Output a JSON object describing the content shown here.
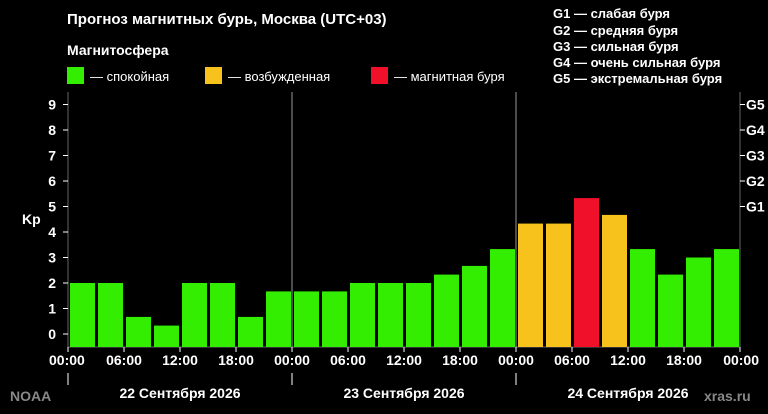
{
  "header": {
    "title": "Прогноз магнитных бурь, Москва (UTC+03)",
    "subtitle": "Магнитосфера"
  },
  "legend": [
    {
      "label": "— спокойная",
      "color": "#33ee00"
    },
    {
      "label": "— возбужденная",
      "color": "#f7c21b"
    },
    {
      "label": "— магнитная буря",
      "color": "#f0102a"
    }
  ],
  "g_legend": [
    "G1 — слабая буря",
    "G2 — средняя буря",
    "G3 — сильная буря",
    "G4 — очень сильная буря",
    "G5 — экстремальная буря"
  ],
  "footer": {
    "left": "NOAA",
    "right": "xras.ru"
  },
  "chart_data": {
    "type": "bar",
    "ylabel": "Kp",
    "ylim": [
      0,
      9
    ],
    "yticks": [
      "0",
      "1",
      "2",
      "3",
      "4",
      "5",
      "6",
      "7",
      "8",
      "9"
    ],
    "g_ticks": [
      {
        "label": "G1",
        "kp": 5
      },
      {
        "label": "G2",
        "kp": 6
      },
      {
        "label": "G3",
        "kp": 7
      },
      {
        "label": "G4",
        "kp": 8
      },
      {
        "label": "G5",
        "kp": 9
      }
    ],
    "x_tick_labels": [
      "00:00",
      "06:00",
      "12:00",
      "18:00",
      "00:00",
      "06:00",
      "12:00",
      "18:00",
      "00:00",
      "06:00",
      "12:00",
      "18:00",
      "00:00"
    ],
    "days": [
      "22 Сентября 2026",
      "23 Сентября 2026",
      "24 Сентября 2026"
    ],
    "values": [
      2.0,
      2.0,
      0.67,
      0.33,
      2.0,
      2.0,
      0.67,
      1.67,
      1.67,
      1.67,
      2.0,
      2.0,
      2.0,
      2.33,
      2.67,
      3.33,
      4.33,
      4.33,
      5.33,
      4.67,
      3.33,
      2.33,
      3.0,
      3.33
    ],
    "thresholds": {
      "active": 4,
      "storm": 5
    },
    "colors": {
      "quiet": "#33ee00",
      "active": "#f7c21b",
      "storm": "#f0102a",
      "grid": "#666666"
    }
  }
}
